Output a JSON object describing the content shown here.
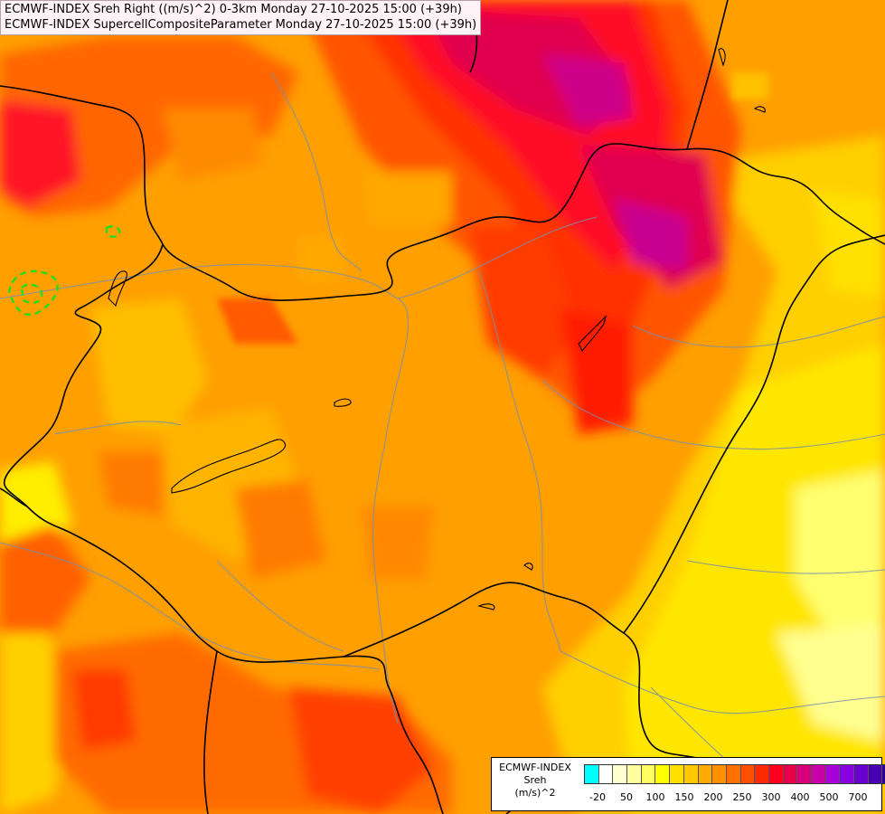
{
  "header": {
    "line1": "ECMWF-INDEX Sreh Right ((m/s)^2) 0-3km Monday 27-10-2025 15:00 (+39h)",
    "line2": "ECMWF-INDEX SupercellCompositeParameter Monday 27-10-2025 15:00 (+39h)"
  },
  "legend": {
    "title1": "ECMWF-INDEX",
    "title2": "Sreh",
    "title3": "(m/s)^2",
    "colors": [
      "#00ffff",
      "#ffffff",
      "#ffffd0",
      "#ffffa0",
      "#ffff60",
      "#ffff00",
      "#ffe000",
      "#ffc800",
      "#ffaa00",
      "#ff9000",
      "#ff7000",
      "#ff5000",
      "#ff2a00",
      "#ff0020",
      "#e8004a",
      "#d8007a",
      "#c800a8",
      "#a800d8",
      "#8800e0",
      "#6800d0",
      "#4800b0",
      "#2a0090",
      "#100070"
    ],
    "ticks": [
      "-20",
      "50",
      "100",
      "150",
      "200",
      "250",
      "300",
      "400",
      "500",
      "700"
    ]
  },
  "map": {
    "layers": [
      "storm-relative-helicity-fill",
      "supercell-composite-parameter-contours",
      "country-borders",
      "rivers",
      "lakes"
    ]
  }
}
